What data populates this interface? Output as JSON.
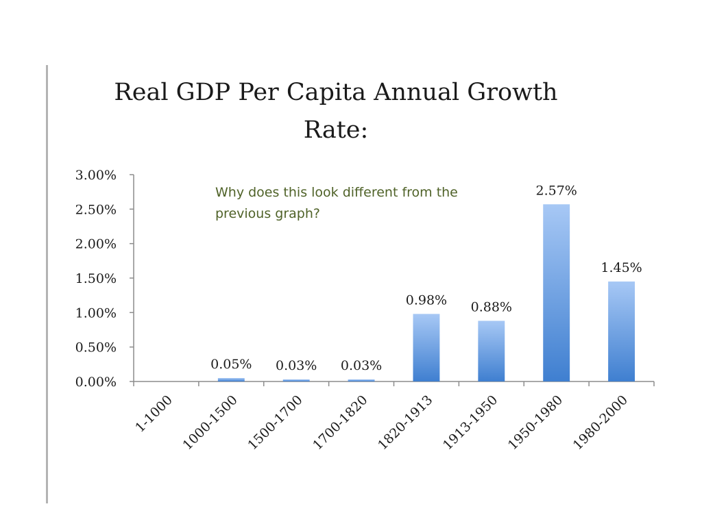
{
  "chart_data": {
    "type": "bar",
    "title": "Real GDP Per Capita Annual Growth Rate:",
    "annotation": "Why does this look different from the previous graph?",
    "categories": [
      "1-1000",
      "1000-1500",
      "1500-1700",
      "1700-1820",
      "1820-1913",
      "1913-1950",
      "1950-1980",
      "1980-2000"
    ],
    "values": [
      0.0,
      0.05,
      0.03,
      0.03,
      0.98,
      0.88,
      2.57,
      1.45
    ],
    "data_labels": [
      "",
      "0.05%",
      "0.03%",
      "0.03%",
      "0.98%",
      "0.88%",
      "2.57%",
      "1.45%"
    ],
    "y_ticks": [
      "0.00%",
      "0.50%",
      "1.00%",
      "1.50%",
      "2.00%",
      "2.50%",
      "3.00%"
    ],
    "ylim": [
      0,
      3
    ],
    "xlabel": "",
    "ylabel": "",
    "grid": false,
    "legend": "none",
    "bar_color_top": "#a7c8f5",
    "bar_color_bottom": "#3f7fd0",
    "annotation_color": "#4f6228"
  }
}
